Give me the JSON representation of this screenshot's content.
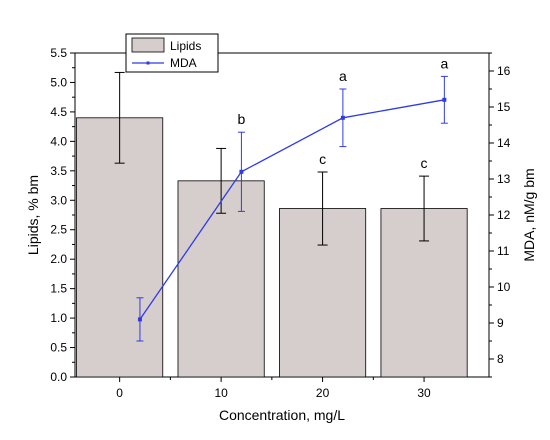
{
  "chart_data": {
    "type": "bar+line",
    "xlabel": "Concentration, mg/L",
    "ylabel_left": "Lipids, % bm",
    "ylabel_right": "MDA, nM/g bm",
    "x_ticks": [
      "0",
      "10",
      "20",
      "30"
    ],
    "ylim_left": [
      0,
      5.5
    ],
    "yticks_left": [
      "0.0",
      "0.5",
      "1.0",
      "1.5",
      "2.0",
      "2.5",
      "3.0",
      "3.5",
      "4.0",
      "4.5",
      "5.0",
      "5.5"
    ],
    "ylim_right": [
      7.5,
      16.5
    ],
    "yticks_right": [
      "8",
      "9",
      "10",
      "11",
      "12",
      "13",
      "14",
      "15",
      "16"
    ],
    "legend_position": "top-left",
    "grid": false,
    "series": [
      {
        "name": "Lipids",
        "kind": "bar",
        "axis": "left",
        "color": "#d6cdcd",
        "x": [
          0,
          10,
          20,
          30
        ],
        "values": [
          4.4,
          3.33,
          2.86,
          2.86
        ],
        "errors": [
          0.77,
          0.55,
          0.62,
          0.55
        ],
        "labels": [
          "",
          "",
          "c",
          "c"
        ]
      },
      {
        "name": "MDA",
        "kind": "line",
        "axis": "right",
        "color": "#2f3ce6",
        "x": [
          2,
          12,
          22,
          32
        ],
        "values": [
          9.1,
          13.2,
          14.7,
          15.2
        ],
        "errors": [
          0.6,
          1.1,
          0.8,
          0.65
        ],
        "labels": [
          "",
          "b",
          "a",
          "a"
        ]
      }
    ]
  }
}
